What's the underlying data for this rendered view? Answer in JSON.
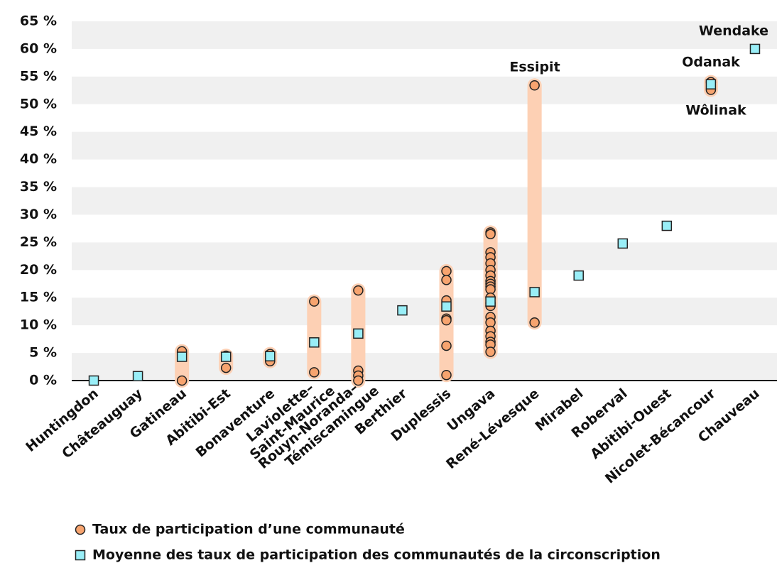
{
  "chart_data": {
    "type": "dotrange",
    "categories": [
      "Huntingdon",
      "Châteauguay",
      "Gatineau",
      "Abitibi-Est",
      "Bonaventure",
      "Laviolette–Saint-Maurice",
      "Rouyn-Noranda–Témiscamingue",
      "Berthier",
      "Duplessis",
      "Ungava",
      "René-Lévesque",
      "Mirabel",
      "Roberval",
      "Abitibi-Ouest",
      "Nicolet-Bécancour",
      "Chauveau"
    ],
    "series": [
      {
        "name": "Taux de participation d’une communauté",
        "color": "#f7a46f",
        "range_color": "#fdd0b4",
        "values": [
          [],
          [],
          [
            5.3,
            0
          ],
          [
            4.5,
            2.3
          ],
          [
            4.8,
            3.5
          ],
          [
            14.3,
            1.5
          ],
          [
            16.3,
            1.8,
            0.9,
            0
          ],
          [],
          [
            19.8,
            18.2,
            14.5,
            11.2,
            10.9,
            6.3,
            1.0
          ],
          [
            26.8,
            26.5,
            23.2,
            22.3,
            21.2,
            20.0,
            19.0,
            18.0,
            17.5,
            17.0,
            16.5,
            15.0,
            14.0,
            13.5,
            11.5,
            10.5,
            9.0,
            8.0,
            7.0,
            6.5,
            5.2
          ],
          [
            53.4,
            10.5
          ],
          [],
          [],
          [],
          [
            54.0,
            52.6
          ],
          []
        ]
      },
      {
        "name": "Moyenne des taux de participation des communautés de la circonscription",
        "color": "#99eef7",
        "values": [
          0,
          0.8,
          4.3,
          4.3,
          4.4,
          6.9,
          8.5,
          12.7,
          13.4,
          14.3,
          16.0,
          19.0,
          24.8,
          28.0,
          53.6,
          60.0
        ]
      }
    ],
    "annotations": [
      "Essipit",
      "Wendake",
      "Odanak",
      "Wôlinak"
    ],
    "ylim": [
      0,
      65
    ],
    "yticks": [
      {
        "value": 0,
        "label": "0 %"
      },
      {
        "value": 5,
        "label": "5 %"
      },
      {
        "value": 10,
        "label": "10 %"
      },
      {
        "value": 15,
        "label": "15 %"
      },
      {
        "value": 20,
        "label": "20 %"
      },
      {
        "value": 25,
        "label": "25 %"
      },
      {
        "value": 30,
        "label": "30 %"
      },
      {
        "value": 35,
        "label": "35 %"
      },
      {
        "value": 40,
        "label": "40 %"
      },
      {
        "value": 45,
        "label": "45 %"
      },
      {
        "value": 50,
        "label": "50 %"
      },
      {
        "value": 55,
        "label": "55 %"
      },
      {
        "value": 60,
        "label": "60 %"
      },
      {
        "value": 65,
        "label": "65 %"
      }
    ],
    "grid": "bands"
  }
}
